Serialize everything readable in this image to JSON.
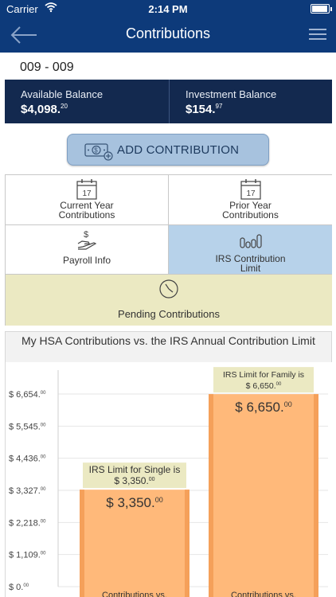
{
  "status_bar": {
    "carrier": "Carrier",
    "time": "2:14 PM"
  },
  "nav": {
    "title": "Contributions"
  },
  "account": {
    "id": "009 - 009"
  },
  "balances": {
    "available_label": "Available Balance",
    "available_value": "$4,098.",
    "available_cents": "20",
    "investment_label": "Investment Balance",
    "investment_value": "$154.",
    "investment_cents": "97"
  },
  "add_contribution": {
    "label": "ADD CONTRIBUTION"
  },
  "tiles": {
    "current_year_line1": "Current Year",
    "current_year_line2": "Contributions",
    "current_year_day": "17",
    "prior_year_line1": "Prior Year",
    "prior_year_line2": "Contributions",
    "prior_year_day": "17",
    "payroll": "Payroll Info",
    "irs_line1": "IRS Contribution",
    "irs_line2": "Limit",
    "pending": "Pending Contributions"
  },
  "chart_title": "My HSA Contributions vs. the IRS Annual Contribution Limit",
  "colors": {
    "nav": "#0d3a7a",
    "balance_bg": "#13294f",
    "bar": "#ffb97a",
    "bar_edge": "#f5a05a",
    "callout": "#ebe9c2",
    "selected_tile": "#b7d2ea",
    "pending_tile": "#ebe9c2"
  },
  "chart_data": {
    "type": "bar",
    "title": "My HSA Contributions vs. the IRS Annual Contribution Limit",
    "ylim": [
      0,
      6654
    ],
    "yticks": [
      {
        "value": 0,
        "main": "$ 0.",
        "cents": "00"
      },
      {
        "value": 1109,
        "main": "$ 1,109.",
        "cents": "00"
      },
      {
        "value": 2218,
        "main": "$ 2,218.",
        "cents": "00"
      },
      {
        "value": 3327,
        "main": "$ 3,327.",
        "cents": "00"
      },
      {
        "value": 4436,
        "main": "$ 4,436.",
        "cents": "00"
      },
      {
        "value": 5545,
        "main": "$ 5,545.",
        "cents": "00"
      },
      {
        "value": 6654,
        "main": "$ 6,654.",
        "cents": "00"
      }
    ],
    "categories": [
      "Contributions vs.",
      "Contributions vs."
    ],
    "values": [
      3350,
      6650
    ],
    "value_labels": [
      {
        "main": "$ 3,350.",
        "cents": "00"
      },
      {
        "main": "$ 6,650.",
        "cents": "00"
      }
    ],
    "callouts": [
      {
        "line1": "IRS Limit for Single is",
        "line2_main": "$ 3,350.",
        "line2_cents": "00"
      },
      {
        "line1": "IRS Limit for Family is",
        "line2_main": "$ 6,650.",
        "line2_cents": "00"
      }
    ],
    "grid": true
  }
}
